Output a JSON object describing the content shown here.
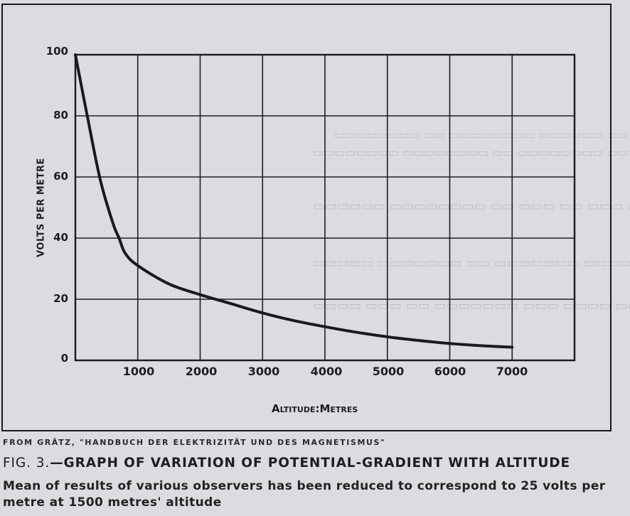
{
  "chart_data": {
    "type": "line",
    "title": "Graph of variation of potential-gradient with altitude",
    "xlabel": "ALTITUDE: METRES",
    "ylabel": "VOLTS PER METRE",
    "xlim": [
      0,
      8000
    ],
    "ylim": [
      0,
      100
    ],
    "grid": true,
    "legend": null,
    "x_ticks": [
      "1000",
      "2000",
      "3000",
      "4000",
      "5000",
      "6000",
      "7000"
    ],
    "y_ticks": [
      "0",
      "20",
      "40",
      "60",
      "80",
      "100"
    ],
    "series": [
      {
        "name": "Potential gradient",
        "x": [
          0,
          200,
          400,
          600,
          700,
          800,
          1000,
          1500,
          2000,
          2500,
          3000,
          3500,
          4000,
          4500,
          5000,
          5500,
          6000,
          6500,
          7000
        ],
        "values": [
          100,
          79,
          59,
          45,
          40,
          35,
          31,
          25,
          21.5,
          18.5,
          15.5,
          13,
          11,
          9.2,
          7.7,
          6.5,
          5.5,
          4.8,
          4.3
        ]
      }
    ]
  },
  "axes": {
    "ylabel": "VOLTS PER METRE",
    "xlabel": "Altitude:Metres",
    "y_ticks": [
      {
        "label": "100",
        "value": 100
      },
      {
        "label": "80",
        "value": 80
      },
      {
        "label": "60",
        "value": 60
      },
      {
        "label": "40",
        "value": 40
      },
      {
        "label": "20",
        "value": 20
      },
      {
        "label": "0",
        "value": 0
      }
    ],
    "x_ticks": [
      {
        "label": "1000",
        "value": 1000
      },
      {
        "label": "2000",
        "value": 2000
      },
      {
        "label": "3000",
        "value": 3000
      },
      {
        "label": "4000",
        "value": 4000
      },
      {
        "label": "5000",
        "value": 5000
      },
      {
        "label": "6000",
        "value": 6000
      },
      {
        "label": "7000",
        "value": 7000
      }
    ]
  },
  "caption": {
    "source": "FROM GRÄTZ, \"HANDBUCH DER ELEKTRIZITÄT UND DES MAGNETISMUS\"",
    "fig_number": "FIG. 3.",
    "title": "—GRAPH OF VARIATION OF POTENTIAL-GRADIENT WITH ALTITUDE",
    "description": "Mean of results of various observers has been reduced to correspond to 25 volts per metre at 1500 metres' altitude"
  },
  "colors": {
    "ink": "#1a1a1e",
    "paper": "#dcdce0"
  }
}
